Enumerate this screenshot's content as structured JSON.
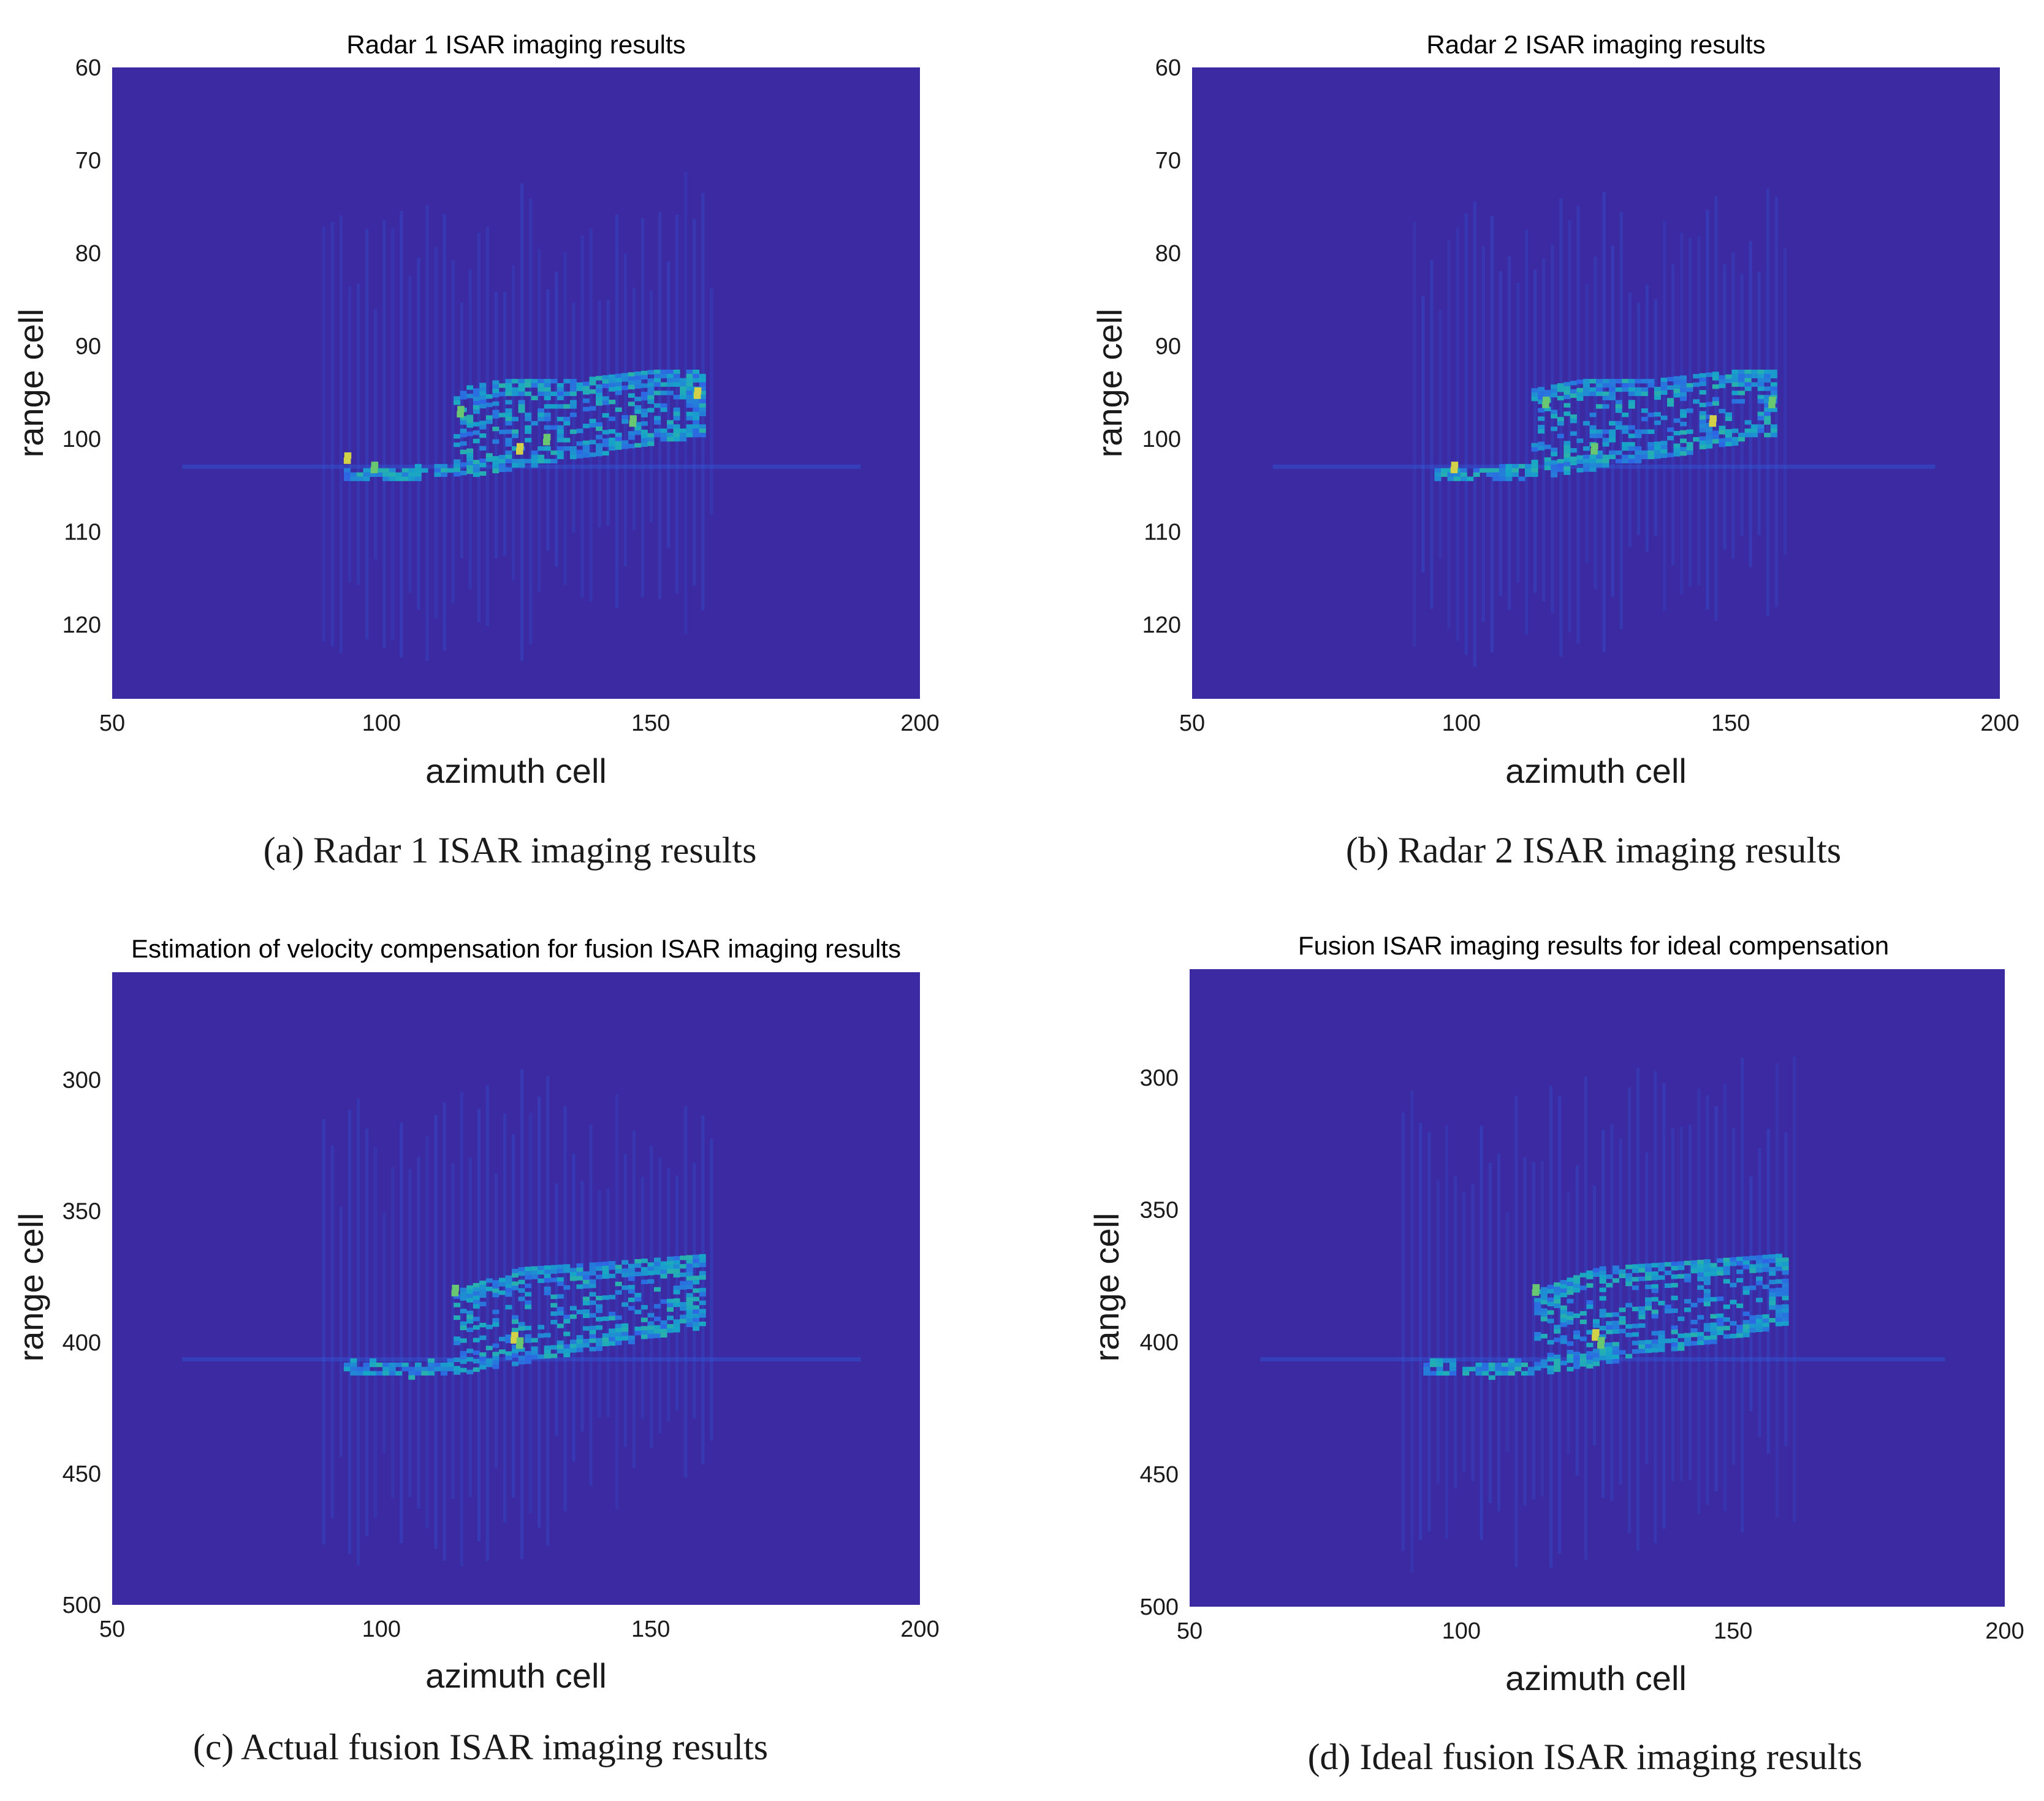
{
  "chart_data": [
    {
      "id": "a",
      "type": "heatmap",
      "title": "Radar 1 ISAR imaging results",
      "xlabel": "azimuth cell",
      "ylabel": "range cell",
      "xlim": [
        50,
        200
      ],
      "ylim": [
        128,
        60
      ],
      "xticks": [
        50,
        100,
        150,
        200
      ],
      "yticks": [
        60,
        70,
        80,
        90,
        100,
        110,
        120
      ],
      "caption": "(a) Radar 1 ISAR imaging results",
      "colormap": [
        "#3e26a8",
        "#2d66e4",
        "#17a5c8",
        "#46c480",
        "#f5d43a"
      ],
      "background_color": "#3b2aa1",
      "target": {
        "az_range": [
          93,
          159
        ],
        "top_line": [
          [
            113,
            95
          ],
          [
            122,
            94
          ],
          [
            135,
            94
          ],
          [
            150,
            93
          ],
          [
            159,
            93
          ]
        ],
        "bottom_line": [
          [
            93,
            104
          ],
          [
            105,
            104
          ],
          [
            120,
            103
          ],
          [
            140,
            101
          ],
          [
            159,
            99
          ]
        ],
        "hotspots": [
          [
            93,
            102
          ],
          [
            98,
            103
          ],
          [
            114,
            97
          ],
          [
            125,
            101
          ],
          [
            130,
            100
          ],
          [
            146,
            98
          ],
          [
            158,
            95
          ]
        ]
      }
    },
    {
      "id": "b",
      "type": "heatmap",
      "title": "Radar 2 ISAR imaging results",
      "xlabel": "azimuth cell",
      "ylabel": "range cell",
      "xlim": [
        50,
        200
      ],
      "ylim": [
        128,
        60
      ],
      "xticks": [
        50,
        100,
        150,
        200
      ],
      "yticks": [
        60,
        70,
        80,
        90,
        100,
        110,
        120
      ],
      "caption": "(b) Radar 2 ISAR imaging results",
      "colormap": [
        "#3e26a8",
        "#2d66e4",
        "#17a5c8",
        "#46c480",
        "#f5d43a"
      ],
      "background_color": "#3b2aa1",
      "target": {
        "az_range": [
          95,
          158
        ],
        "top_line": [
          [
            113,
            95
          ],
          [
            122,
            94
          ],
          [
            135,
            94
          ],
          [
            150,
            93
          ],
          [
            158,
            93
          ]
        ],
        "bottom_line": [
          [
            95,
            104
          ],
          [
            105,
            104
          ],
          [
            120,
            103
          ],
          [
            140,
            101
          ],
          [
            158,
            99
          ]
        ],
        "hotspots": [
          [
            98,
            103
          ],
          [
            115,
            96
          ],
          [
            124,
            101
          ],
          [
            146,
            98
          ],
          [
            157,
            96
          ]
        ]
      }
    },
    {
      "id": "c",
      "type": "heatmap",
      "title": "Estimation of velocity compensation for fusion ISAR imaging results",
      "xlabel": "azimuth cell",
      "ylabel": "range cell",
      "xlim": [
        50,
        200
      ],
      "ylim": [
        500,
        259
      ],
      "xticks": [
        50,
        100,
        150,
        200
      ],
      "yticks": [
        300,
        350,
        400,
        450,
        500
      ],
      "caption": "(c) Actual fusion ISAR imaging results",
      "colormap": [
        "#3e26a8",
        "#2d66e4",
        "#17a5c8",
        "#46c480",
        "#f5d43a"
      ],
      "background_color": "#3b2aa1",
      "target": {
        "az_range": [
          93,
          159
        ],
        "top_line": [
          [
            113,
            382
          ],
          [
            125,
            373
          ],
          [
            140,
            371
          ],
          [
            159,
            368
          ]
        ],
        "bottom_line": [
          [
            93,
            410
          ],
          [
            105,
            411
          ],
          [
            120,
            408
          ],
          [
            140,
            400
          ],
          [
            159,
            392
          ]
        ],
        "hotspots": [
          [
            124,
            398
          ],
          [
            125,
            400
          ],
          [
            113,
            380
          ]
        ]
      }
    },
    {
      "id": "d",
      "type": "heatmap",
      "title": "Fusion ISAR imaging results for ideal compensation",
      "xlabel": "azimuth cell",
      "ylabel": "range cell",
      "xlim": [
        50,
        200
      ],
      "ylim": [
        500,
        259
      ],
      "xticks": [
        50,
        100,
        150,
        200
      ],
      "yticks": [
        300,
        350,
        400,
        450,
        500
      ],
      "caption": "(d) Ideal fusion ISAR imaging results",
      "colormap": [
        "#3e26a8",
        "#2d66e4",
        "#17a5c8",
        "#46c480",
        "#f5d43a"
      ],
      "background_color": "#3b2aa1",
      "target": {
        "az_range": [
          93,
          159
        ],
        "top_line": [
          [
            113,
            382
          ],
          [
            125,
            373
          ],
          [
            140,
            371
          ],
          [
            159,
            368
          ]
        ],
        "bottom_line": [
          [
            93,
            410
          ],
          [
            105,
            411
          ],
          [
            120,
            408
          ],
          [
            140,
            400
          ],
          [
            159,
            392
          ]
        ],
        "hotspots": [
          [
            124,
            397
          ],
          [
            125,
            400
          ],
          [
            113,
            380
          ]
        ]
      }
    }
  ]
}
